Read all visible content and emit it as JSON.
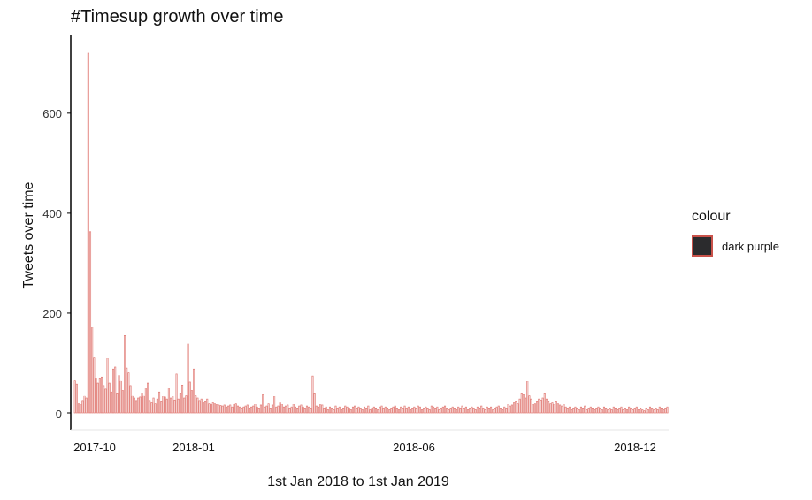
{
  "chart_data": {
    "type": "bar",
    "title": "#Timesup growth over time",
    "xlabel": "1st Jan 2018 to 1st Jan 2019",
    "ylabel": "Tweets over time",
    "x_tick_labels": [
      "2017-10",
      "2018-01",
      "2018-06",
      "2018-12"
    ],
    "y_ticks": [
      0,
      200,
      400,
      600
    ],
    "ylim": [
      0,
      740
    ],
    "grid": false,
    "legend": {
      "title": "colour",
      "entries": [
        {
          "label": "dark purple",
          "fill": "#2b2b2d",
          "stroke": "#c9524a"
        }
      ],
      "placement": "right"
    },
    "bar_stroke": "#e07872",
    "values": [
      66,
      58,
      20,
      18,
      25,
      35,
      30,
      720,
      363,
      172,
      112,
      70,
      60,
      70,
      72,
      55,
      48,
      110,
      60,
      42,
      88,
      92,
      40,
      75,
      65,
      45,
      155,
      90,
      82,
      55,
      35,
      30,
      25,
      30,
      32,
      40,
      35,
      50,
      60,
      25,
      22,
      30,
      20,
      28,
      42,
      24,
      34,
      32,
      28,
      50,
      30,
      34,
      26,
      78,
      28,
      40,
      56,
      30,
      36,
      138,
      62,
      45,
      88,
      36,
      30,
      25,
      28,
      22,
      24,
      28,
      20,
      18,
      22,
      20,
      18,
      16,
      15,
      14,
      16,
      12,
      14,
      16,
      12,
      18,
      20,
      14,
      12,
      10,
      12,
      14,
      16,
      10,
      12,
      14,
      18,
      12,
      10,
      16,
      38,
      12,
      14,
      20,
      10,
      16,
      34,
      12,
      14,
      22,
      18,
      12,
      14,
      16,
      10,
      12,
      18,
      12,
      10,
      14,
      16,
      12,
      10,
      14,
      12,
      10,
      74,
      40,
      14,
      12,
      18,
      16,
      10,
      12,
      8,
      12,
      10,
      8,
      14,
      10,
      12,
      8,
      10,
      14,
      12,
      10,
      8,
      12,
      14,
      10,
      12,
      10,
      8,
      12,
      10,
      14,
      8,
      10,
      12,
      10,
      8,
      12,
      14,
      10,
      12,
      10,
      8,
      10,
      12,
      14,
      10,
      8,
      12,
      10,
      14,
      10,
      12,
      8,
      10,
      12,
      10,
      14,
      12,
      8,
      10,
      12,
      10,
      8,
      14,
      12,
      10,
      12,
      8,
      10,
      12,
      14,
      10,
      8,
      10,
      12,
      10,
      8,
      12,
      10,
      14,
      10,
      12,
      8,
      10,
      12,
      10,
      8,
      12,
      10,
      14,
      10,
      8,
      12,
      10,
      12,
      8,
      10,
      12,
      14,
      10,
      8,
      12,
      10,
      18,
      14,
      16,
      22,
      24,
      20,
      28,
      40,
      38,
      30,
      64,
      36,
      28,
      18,
      20,
      24,
      28,
      26,
      30,
      40,
      28,
      24,
      20,
      22,
      18,
      24,
      20,
      16,
      14,
      18,
      12,
      10,
      12,
      8,
      10,
      12,
      10,
      8,
      12,
      10,
      14,
      8,
      10,
      12,
      10,
      8,
      10,
      12,
      10,
      8,
      12,
      10,
      8,
      10,
      8,
      12,
      10,
      8,
      10,
      12,
      8,
      10,
      8,
      12,
      10,
      8,
      10,
      12,
      8,
      10,
      8,
      6,
      10,
      8,
      12,
      10,
      8,
      10,
      8,
      12,
      10,
      8,
      10,
      12
    ]
  }
}
